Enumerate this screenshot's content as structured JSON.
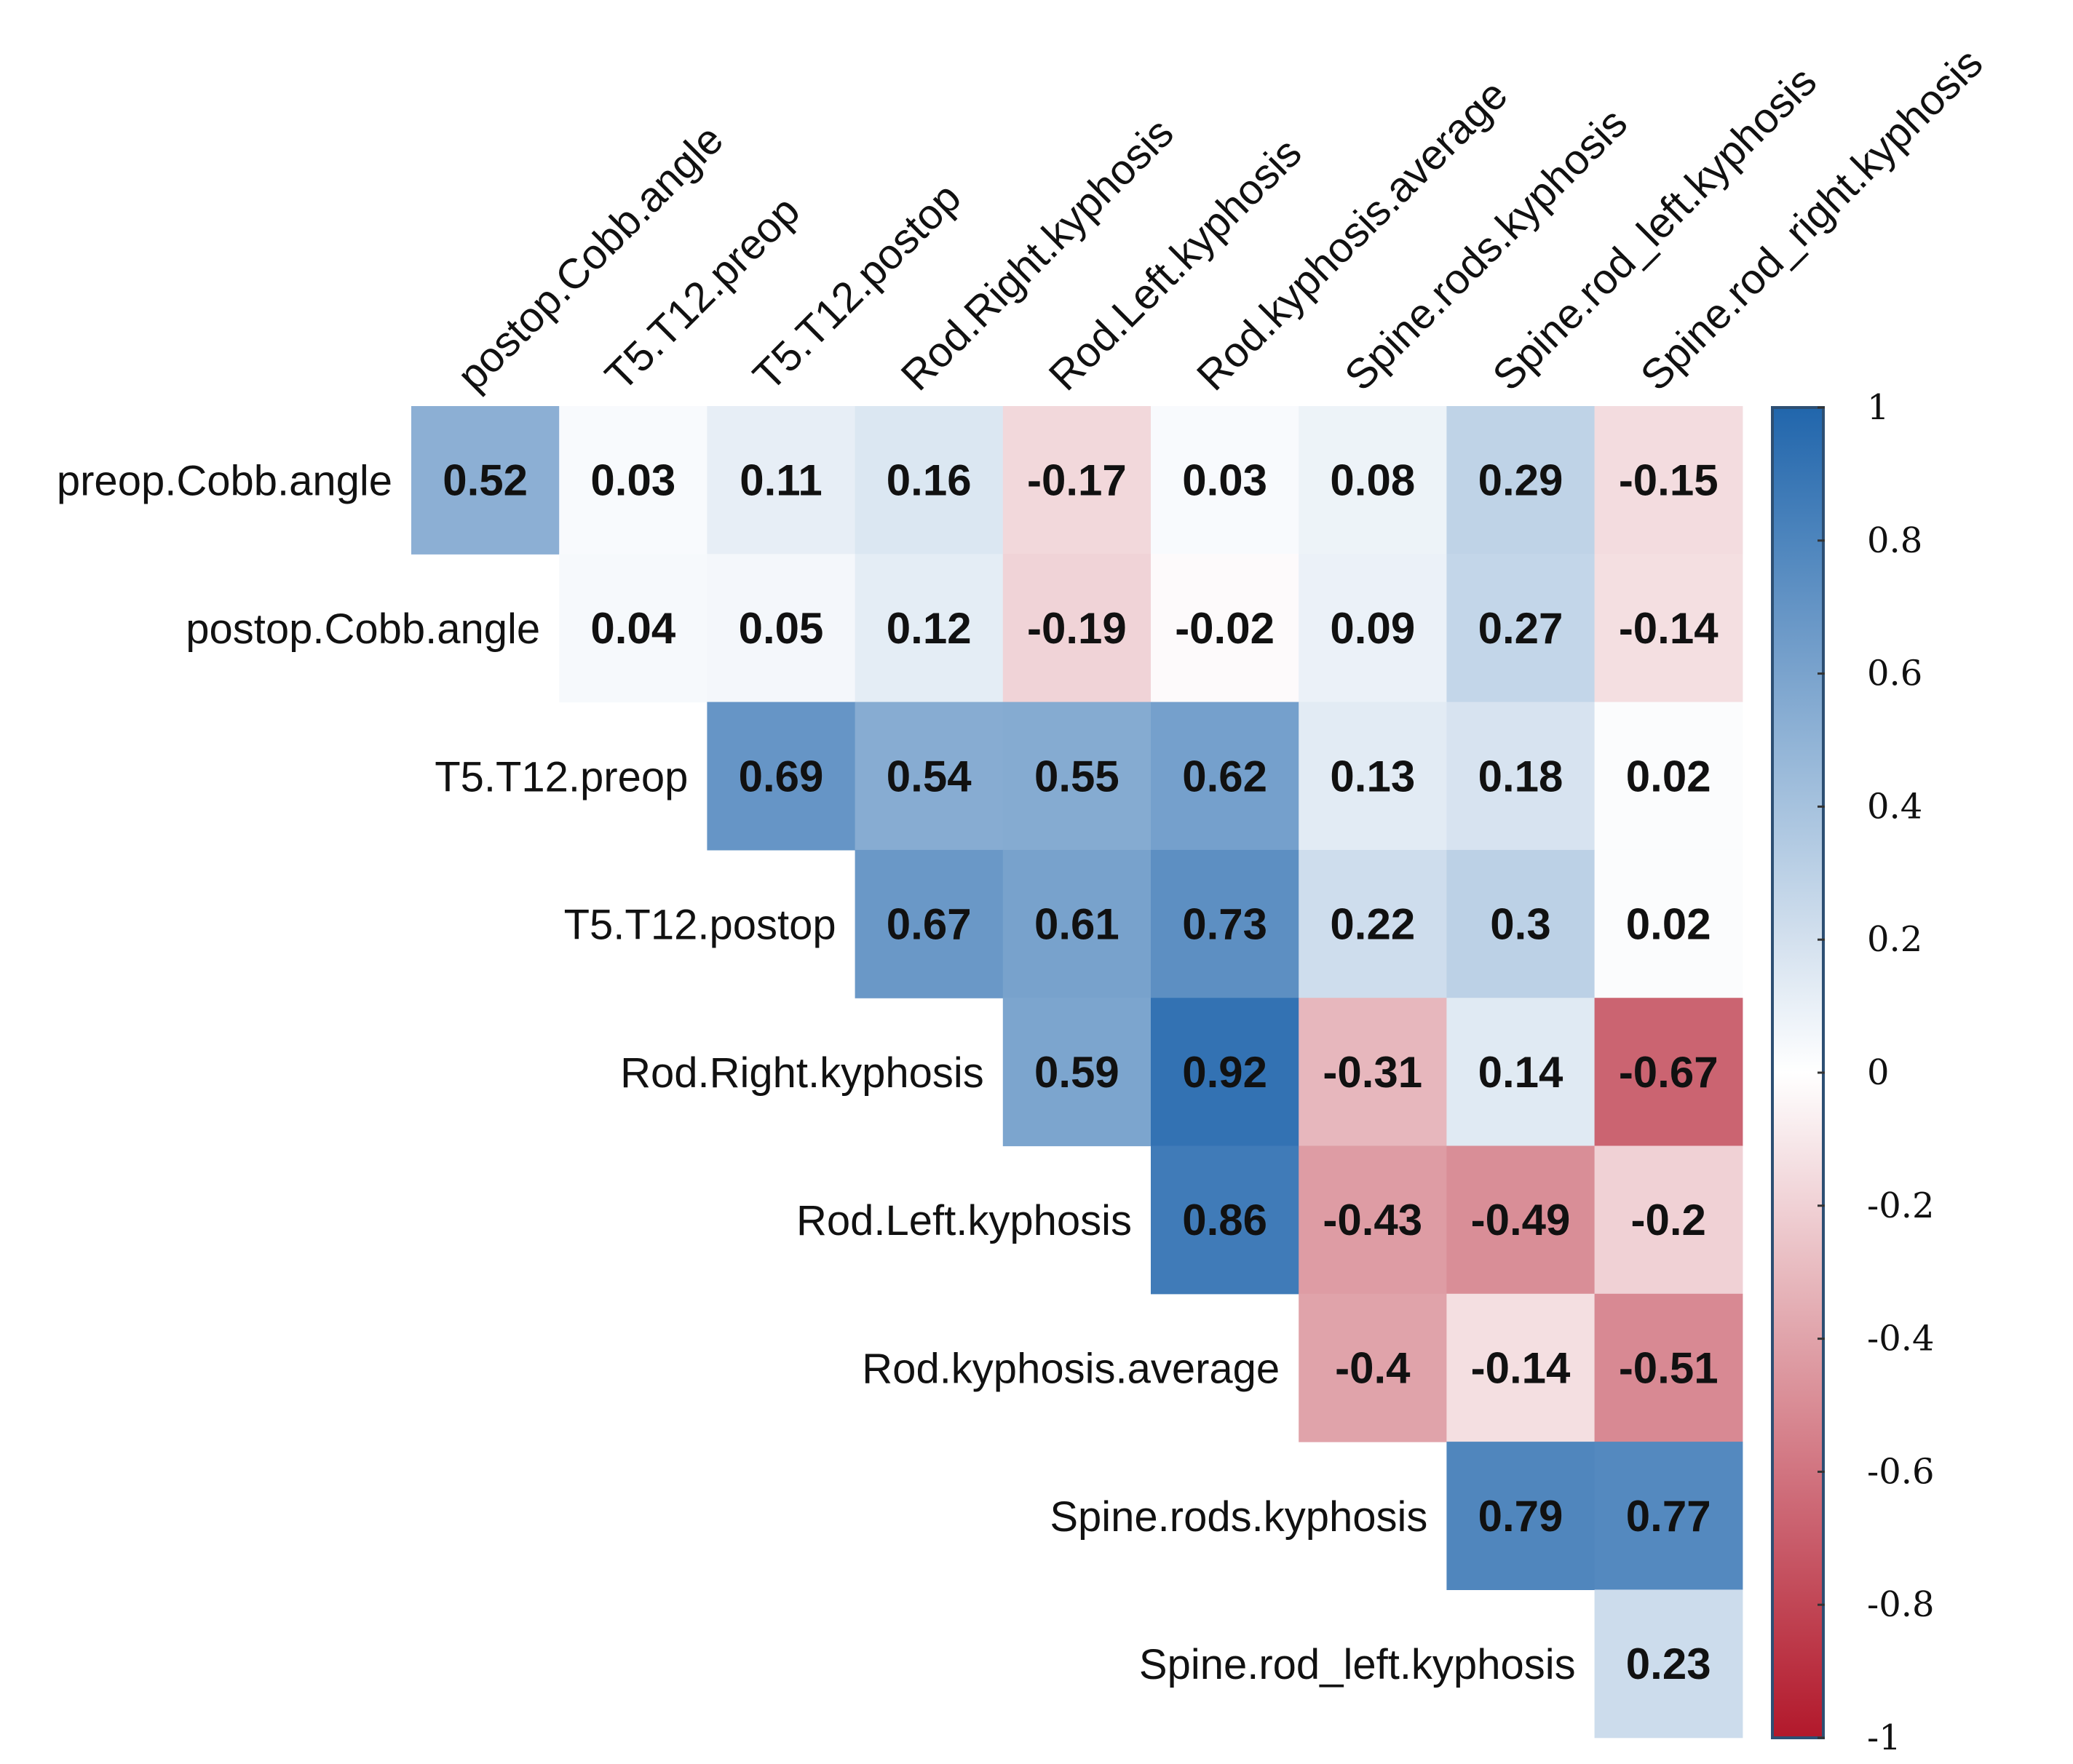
{
  "chart_data": {
    "type": "heatmap",
    "title": "",
    "col_labels": [
      "postop.Cobb.angle",
      "T5.T12.preop",
      "T5.T12.postop",
      "Rod.Right.kyphosis",
      "Rod.Left.kyphosis",
      "Rod.kyphosis.average",
      "Spine.rods.kyphosis",
      "Spine.rod_left.kyphosis",
      "Spine.rod_right.kyphosis"
    ],
    "row_labels": [
      "preop.Cobb.angle",
      "postop.Cobb.angle",
      "T5.T12.preop",
      "T5.T12.postop",
      "Rod.Right.kyphosis",
      "Rod.Left.kyphosis",
      "Rod.kyphosis.average",
      "Spine.rods.kyphosis",
      "Spine.rod_left.kyphosis"
    ],
    "values": [
      [
        0.52,
        0.03,
        0.11,
        0.16,
        -0.17,
        0.03,
        0.08,
        0.29,
        -0.15
      ],
      [
        null,
        0.04,
        0.05,
        0.12,
        -0.19,
        -0.02,
        0.09,
        0.27,
        -0.14
      ],
      [
        null,
        null,
        0.69,
        0.54,
        0.55,
        0.62,
        0.13,
        0.18,
        0.02
      ],
      [
        null,
        null,
        null,
        0.67,
        0.61,
        0.73,
        0.22,
        0.3,
        0.02
      ],
      [
        null,
        null,
        null,
        null,
        0.59,
        0.92,
        -0.31,
        0.14,
        -0.67
      ],
      [
        null,
        null,
        null,
        null,
        null,
        0.86,
        -0.43,
        -0.49,
        -0.2
      ],
      [
        null,
        null,
        null,
        null,
        null,
        null,
        -0.4,
        -0.14,
        -0.51
      ],
      [
        null,
        null,
        null,
        null,
        null,
        null,
        null,
        0.79,
        0.77
      ],
      [
        null,
        null,
        null,
        null,
        null,
        null,
        null,
        null,
        0.23
      ]
    ],
    "colorbar": {
      "range": [
        -1,
        1
      ],
      "ticks": [
        "1",
        "0.8",
        "0.6",
        "0.4",
        "0.2",
        "0",
        "-0.2",
        "-0.4",
        "-0.6",
        "-0.8",
        "-1"
      ],
      "colors": {
        "negative": "#b2182b",
        "neutral": "#ffffff",
        "positive": "#2166ac",
        "outline": "#2d4f73",
        "tick": "#333333"
      }
    }
  }
}
